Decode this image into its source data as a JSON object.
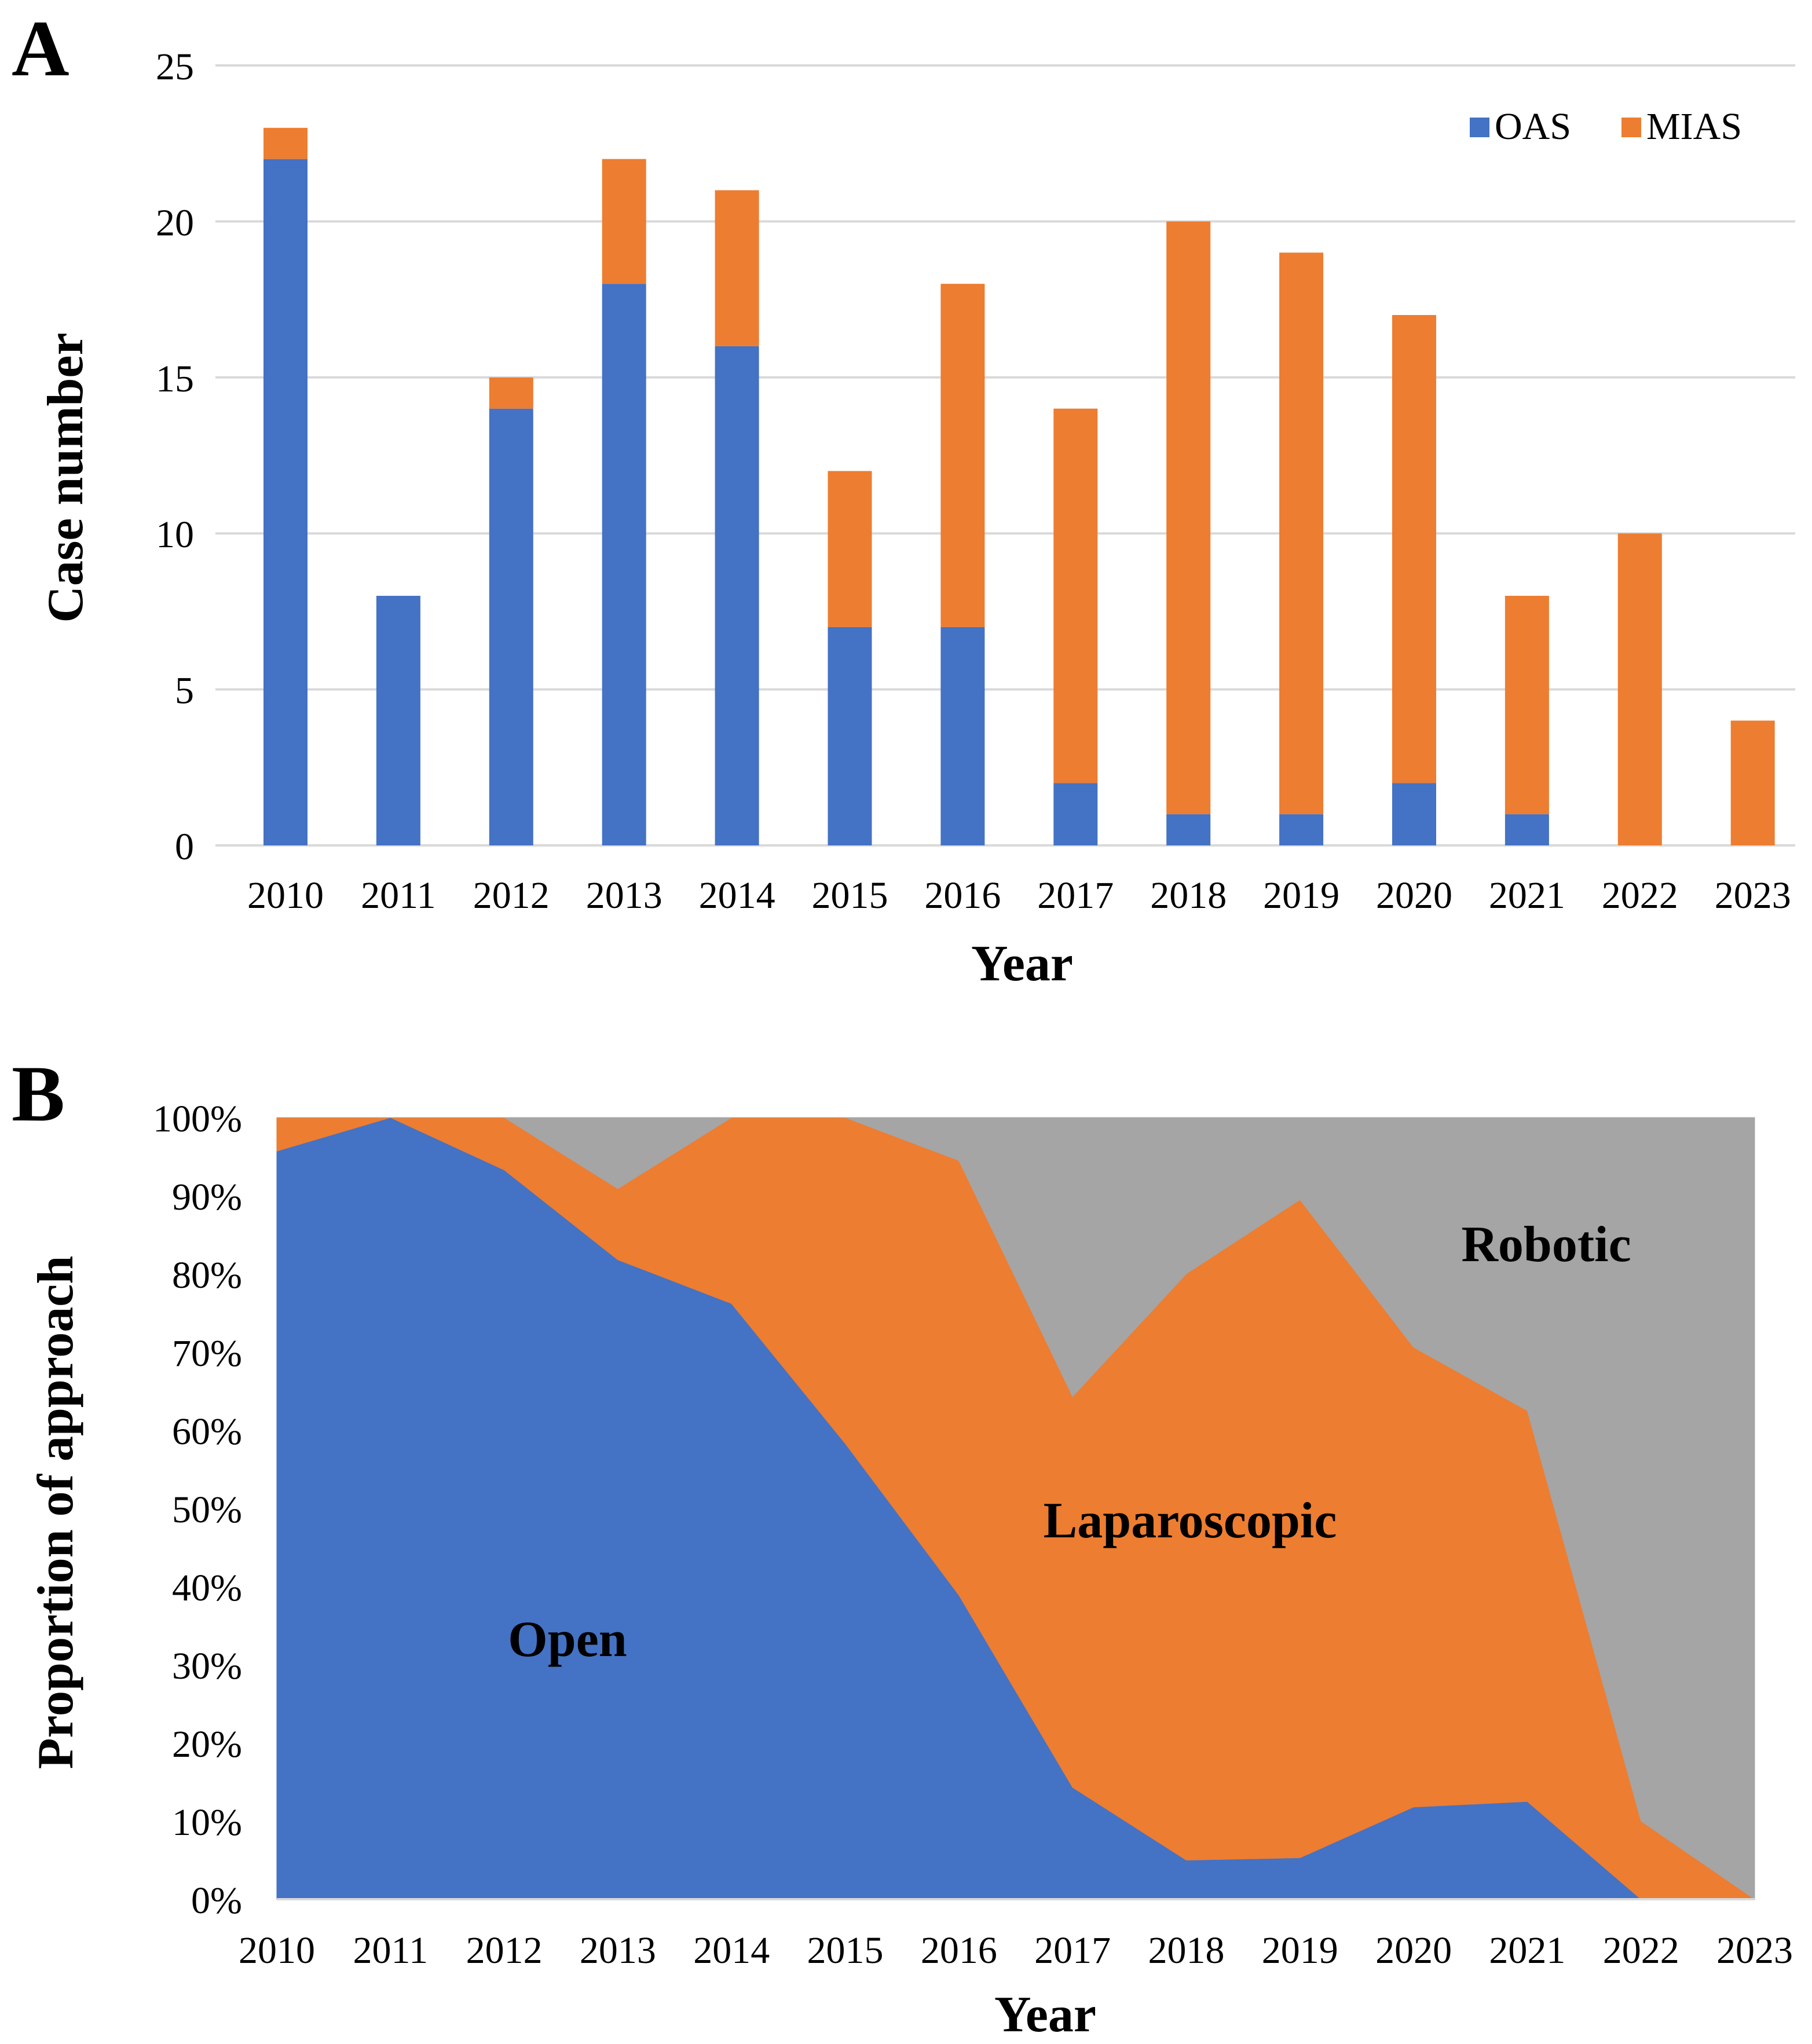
{
  "chart_data": [
    {
      "panel_label": "A",
      "type": "bar",
      "stacked": true,
      "title": "",
      "xlabel": "Year",
      "ylabel": "Case number",
      "ylim": [
        0,
        25
      ],
      "yticks": [
        "0",
        "5",
        "10",
        "15",
        "20",
        "25"
      ],
      "grid": true,
      "legend_position": "top-right",
      "categories": [
        "2010",
        "2011",
        "2012",
        "2013",
        "2014",
        "2015",
        "2016",
        "2017",
        "2018",
        "2019",
        "2020",
        "2021",
        "2022",
        "2023"
      ],
      "series": [
        {
          "name": "OAS",
          "color": "#4472C4",
          "values": [
            22,
            8,
            14,
            18,
            16,
            7,
            7,
            2,
            1,
            1,
            2,
            1,
            0,
            0
          ]
        },
        {
          "name": "MIAS",
          "color": "#ED7D31",
          "values": [
            1,
            0,
            1,
            4,
            5,
            5,
            11,
            12,
            19,
            18,
            15,
            7,
            10,
            4
          ]
        }
      ]
    },
    {
      "panel_label": "B",
      "type": "area",
      "stacked": true,
      "title": "",
      "xlabel": "Year",
      "ylabel": "Proportion of approach",
      "ylim": [
        0,
        100
      ],
      "yticks": [
        "0%",
        "10%",
        "20%",
        "30%",
        "40%",
        "50%",
        "60%",
        "70%",
        "80%",
        "90%",
        "100%"
      ],
      "grid": true,
      "categories": [
        "2010",
        "2011",
        "2012",
        "2013",
        "2014",
        "2015",
        "2016",
        "2017",
        "2018",
        "2019",
        "2020",
        "2021",
        "2022",
        "2023"
      ],
      "series": [
        {
          "name": "Open",
          "color": "#4472C4",
          "values": [
            95.7,
            100,
            93.3,
            81.8,
            76.2,
            58.3,
            38.9,
            14.3,
            5.0,
            5.3,
            11.8,
            12.5,
            0,
            0
          ]
        },
        {
          "name": "Laparoscopic",
          "color": "#ED7D31",
          "values": [
            4.3,
            0,
            6.7,
            9.1,
            23.8,
            41.7,
            55.6,
            50.0,
            75.0,
            84.2,
            58.8,
            50.0,
            10.0,
            0
          ]
        },
        {
          "name": "Robotic",
          "color": "#A5A5A5",
          "values": [
            0,
            0,
            0,
            9.1,
            0,
            0,
            5.5,
            35.7,
            20.0,
            10.5,
            29.4,
            37.5,
            90.0,
            100
          ]
        }
      ]
    }
  ]
}
